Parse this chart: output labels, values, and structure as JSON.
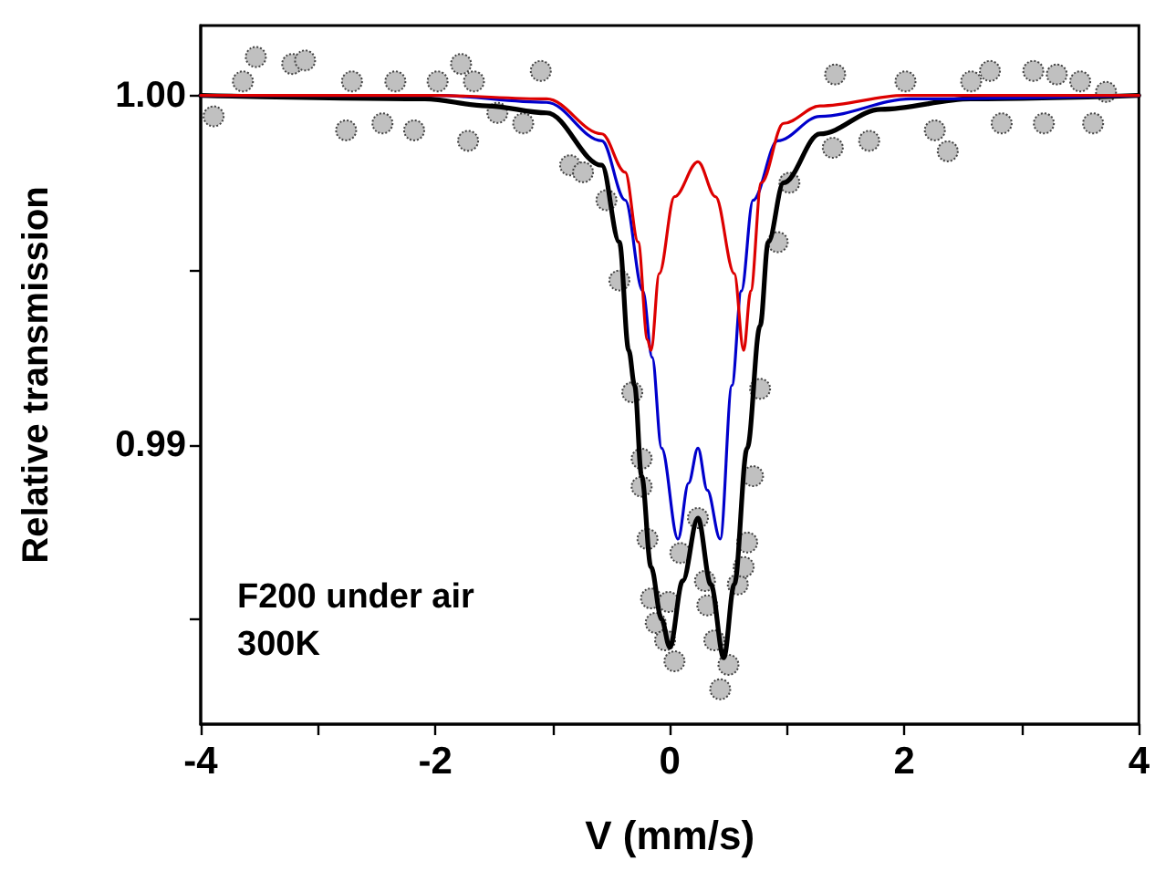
{
  "chart_data": {
    "type": "line",
    "xlabel": "V (mm/s)",
    "ylabel": "Relative transmission",
    "xlim": [
      -4,
      4
    ],
    "ylim": [
      0.982,
      1.002
    ],
    "xticks": [
      -4,
      {
        "value": -3,
        "label": null
      },
      -2,
      {
        "value": -1,
        "label": null
      },
      0,
      {
        "value": 1,
        "label": null
      },
      2,
      {
        "value": 3,
        "label": null
      },
      4
    ],
    "yticks": [
      {
        "value": 0.985,
        "label": null
      },
      0.99,
      {
        "value": 0.995,
        "label": null
      },
      {
        "value": 1,
        "label": "1.00"
      }
    ],
    "annotations": [
      "F200 under air",
      "300K"
    ],
    "series": [
      {
        "type": "scatter",
        "marker": "circle",
        "color": "#c0c0c0",
        "x": [
          -3.89,
          -3.64,
          -3.53,
          -3.22,
          -3.11,
          -2.76,
          -2.71,
          -2.45,
          -2.34,
          -2.18,
          -1.98,
          -1.78,
          -1.72,
          -1.67,
          -1.47,
          -1.25,
          -1.1,
          -0.85,
          -0.74,
          -0.54,
          -0.43,
          -0.32,
          -0.24,
          -0.24,
          -0.19,
          -0.16,
          -0.12,
          -0.04,
          -0.01,
          0.04,
          0.09,
          0.24,
          0.3,
          0.32,
          0.38,
          0.43,
          0.5,
          0.58,
          0.63,
          0.66,
          0.71,
          0.77,
          0.92,
          1.02,
          1.39,
          1.41,
          1.7,
          2.01,
          2.26,
          2.37,
          2.57,
          2.73,
          2.83,
          3.1,
          3.19,
          3.3,
          3.5,
          3.61,
          3.72
        ],
        "values": [
          0.9994,
          1.0004,
          1.0011,
          1.0009,
          1.001,
          0.999,
          1.0004,
          0.9992,
          1.0004,
          0.999,
          1.0004,
          1.0009,
          0.9987,
          1.0004,
          0.9995,
          0.9992,
          1.0007,
          0.998,
          0.9978,
          0.997,
          0.9947,
          0.9915,
          0.9896,
          0.9888,
          0.9873,
          0.9856,
          0.9849,
          0.9844,
          0.9855,
          0.9838,
          0.9869,
          0.9879,
          0.9861,
          0.9854,
          0.9844,
          0.983,
          0.9837,
          0.986,
          0.9865,
          0.9872,
          0.9891,
          0.9916,
          0.9958,
          0.9975,
          0.9985,
          1.0006,
          0.9987,
          1.0004,
          0.999,
          0.9984,
          1.0004,
          1.0007,
          0.9992,
          1.0007,
          0.9992,
          1.0006,
          1.0004,
          0.9992,
          1.0001
        ]
      },
      {
        "color": "#000000",
        "x": [
          -4,
          -2.09,
          -1.56,
          -1.05,
          -0.58,
          -0.43,
          -0.35,
          -0.3,
          -0.24,
          -0.16,
          -0.07,
          0.0,
          0.11,
          0.24,
          0.35,
          0.46,
          0.55,
          0.66,
          0.77,
          0.84,
          0.97,
          1.28,
          1.8,
          2.57,
          4
        ],
        "values": [
          1.0,
          0.9999,
          0.9997,
          0.9995,
          0.998,
          0.9958,
          0.9927,
          0.9917,
          0.9891,
          0.9865,
          0.985,
          0.9842,
          0.9861,
          0.9879,
          0.986,
          0.9839,
          0.986,
          0.9899,
          0.9934,
          0.9958,
          0.9975,
          0.9989,
          0.9996,
          0.9999,
          1.0
        ]
      },
      {
        "color": "#0000cc",
        "x": [
          -4,
          -2.0,
          -1.05,
          -0.58,
          -0.38,
          -0.23,
          -0.15,
          -0.07,
          0.07,
          0.16,
          0.24,
          0.32,
          0.43,
          0.53,
          0.61,
          0.71,
          0.92,
          1.28,
          2.06,
          4
        ],
        "values": [
          1.0,
          1.0,
          0.9998,
          0.9987,
          0.997,
          0.9944,
          0.9925,
          0.9899,
          0.9873,
          0.9889,
          0.9899,
          0.9887,
          0.9873,
          0.9917,
          0.9944,
          0.997,
          0.9987,
          0.9994,
          0.9999,
          1.0
        ]
      },
      {
        "color": "#dd0000",
        "x": [
          -4,
          -2.0,
          -1.05,
          -0.58,
          -0.38,
          -0.27,
          -0.19,
          -0.16,
          -0.09,
          0.04,
          0.24,
          0.39,
          0.55,
          0.63,
          0.69,
          0.78,
          0.97,
          1.28,
          2.0,
          4
        ],
        "values": [
          1.0,
          1.0,
          0.9999,
          0.9989,
          0.9978,
          0.9958,
          0.993,
          0.9927,
          0.9949,
          0.9971,
          0.9981,
          0.9971,
          0.9949,
          0.9927,
          0.9944,
          0.9975,
          0.9992,
          0.9997,
          1.0,
          1.0
        ]
      }
    ]
  }
}
